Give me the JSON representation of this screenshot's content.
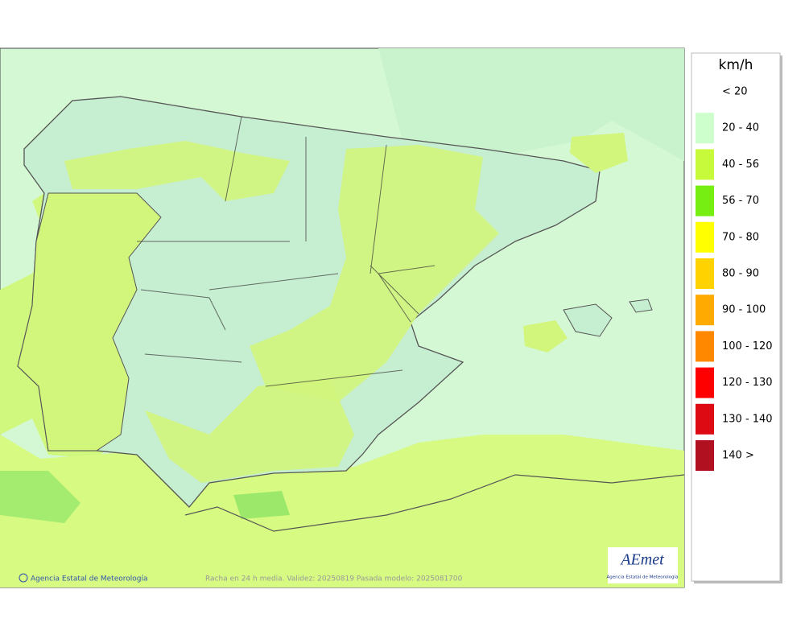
{
  "map": {
    "footer": "Racha en 24 h media. Validez: 20250819 Pasada modelo: 2025081700",
    "credit": "Agencia Estatal de Meteorología",
    "logo": {
      "title": "AEmet",
      "subtitle": "Agencia Estatal de Meteorología"
    }
  },
  "legend": {
    "unit": "km/h",
    "items": [
      {
        "label": "< 20"
      },
      {
        "label": "20 - 40",
        "color": "#ccffcc"
      },
      {
        "label": "40 - 56",
        "color": "#c8fa3c"
      },
      {
        "label": "56 - 70",
        "color": "#77ee11"
      },
      {
        "label": "70 - 80",
        "color": "#ffff00"
      },
      {
        "label": "80 - 90",
        "color": "#ffd200"
      },
      {
        "label": "90 - 100",
        "color": "#ffaa00"
      },
      {
        "label": "100 - 120",
        "color": "#ff8800"
      },
      {
        "label": "120 - 130",
        "color": "#ff0000"
      },
      {
        "label": "130 - 140",
        "color": "#dd0a14"
      },
      {
        "label": "140 >",
        "color": "#b01020"
      }
    ]
  }
}
